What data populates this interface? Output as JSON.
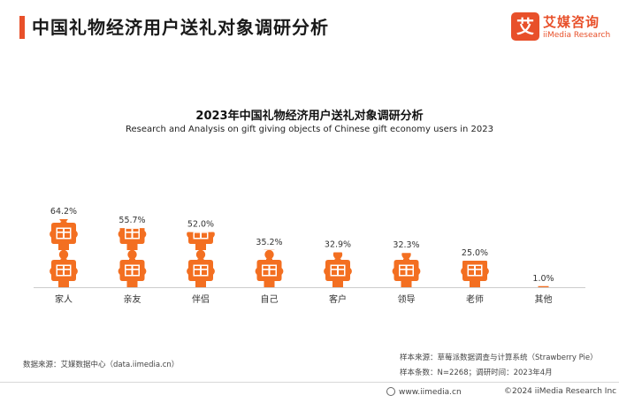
{
  "header": {
    "title": "中国礼物经济用户送礼对象调研分析"
  },
  "logo": {
    "mark": "艾",
    "name_cn": "艾媒咨询",
    "name_en": "iiMedia Research"
  },
  "colors": {
    "accent": "#e8502a",
    "figure": "#f36f21",
    "axis": "#cccccc"
  },
  "chart_data": {
    "type": "bar",
    "title": "2023年中国礼物经济用户送礼对象调研分析",
    "subtitle": "Research and Analysis on gift giving objects of Chinese gift economy users in 2023",
    "categories": [
      "家人",
      "亲友",
      "伴侣",
      "自己",
      "客户",
      "领导",
      "老师",
      "其他"
    ],
    "values": [
      64.2,
      55.7,
      52.0,
      35.2,
      32.9,
      32.3,
      25.0,
      1.0
    ],
    "value_labels": [
      "64.2%",
      "55.7%",
      "52.0%",
      "35.2%",
      "32.9%",
      "32.3%",
      "25.0%",
      "1.0%"
    ],
    "unit": "%",
    "ylim": [
      0,
      70
    ],
    "grid": false,
    "legend": "none",
    "icon": "person-holding-gift-icon"
  },
  "notes": {
    "source_sample": "样本来源：草莓派数据调查与计算系统（Strawberry Pie）",
    "sample_info": "样本条数：N=2268；调研时间：2023年4月",
    "data_source": "数据来源：艾媒数据中心（data.iimedia.cn）"
  },
  "footer": {
    "website": "www.iimedia.cn",
    "copyright": "©2024  iiMedia Research  Inc"
  }
}
